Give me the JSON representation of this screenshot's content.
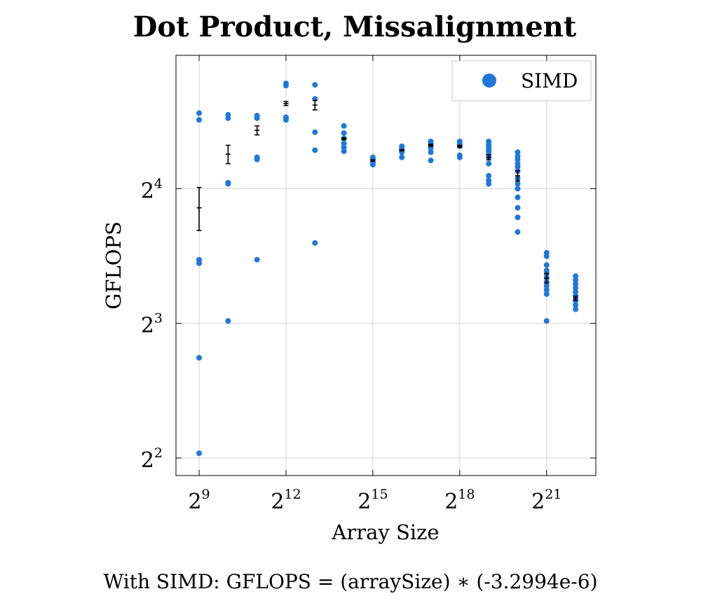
{
  "chart_data": {
    "type": "scatter",
    "title": "Dot Product, Missalignment",
    "xlabel": "Array Size",
    "ylabel": "GFLOPS",
    "x_scale": "log2",
    "y_scale": "log2",
    "x_range_exponent": [
      8.2,
      22.7
    ],
    "y_range_exponent": [
      1.87,
      4.99
    ],
    "x_ticks": [
      {
        "base": "2",
        "exp": "9",
        "value": 512
      },
      {
        "base": "2",
        "exp": "12",
        "value": 4096
      },
      {
        "base": "2",
        "exp": "15",
        "value": 32768
      },
      {
        "base": "2",
        "exp": "18",
        "value": 262144
      },
      {
        "base": "2",
        "exp": "21",
        "value": 2097152
      }
    ],
    "y_ticks": [
      {
        "base": "2",
        "exp": "2",
        "value": 4
      },
      {
        "base": "2",
        "exp": "3",
        "value": 8
      },
      {
        "base": "2",
        "exp": "4",
        "value": 16
      }
    ],
    "grid": true,
    "legend_position": "top-right",
    "series": [
      {
        "name": "SIMD",
        "color": "#1f77d8",
        "points": [
          {
            "x": 512,
            "ys": [
              23.6,
              22.8,
              11.1,
              10.9,
              6.7,
              4.1
            ]
          },
          {
            "x": 1024,
            "ys": [
              23.4,
              23.0,
              16.5,
              16.4,
              8.1
            ]
          },
          {
            "x": 2048,
            "ys": [
              23.3,
              23.0,
              18.8,
              18.6,
              11.1
            ]
          },
          {
            "x": 4096,
            "ys": [
              27.5,
              27.2,
              23.1,
              22.8
            ]
          },
          {
            "x": 8192,
            "ys": [
              27.3,
              25.4,
              21.4,
              19.5,
              12.1
            ]
          },
          {
            "x": 16384,
            "ys": [
              22.1,
              21.3,
              20.7,
              20.2,
              19.8,
              19.4
            ]
          },
          {
            "x": 32768,
            "ys": [
              18.8,
              18.6,
              18.3,
              18.1
            ]
          },
          {
            "x": 65536,
            "ys": [
              19.9,
              19.7,
              19.5,
              19.3,
              18.8
            ]
          },
          {
            "x": 131072,
            "ys": [
              20.4,
              20.2,
              20.0,
              19.7,
              19.3,
              18.5
            ]
          },
          {
            "x": 262144,
            "ys": [
              20.4,
              20.2,
              20.1,
              19.9,
              19.0,
              18.8
            ]
          },
          {
            "x": 524288,
            "ys": [
              20.4,
              20.1,
              19.9,
              19.6,
              19.4,
              19.1,
              18.8,
              18.2,
              17.1,
              16.7,
              16.4
            ]
          },
          {
            "x": 1048576,
            "ys": [
              19.3,
              18.9,
              18.6,
              18.2,
              17.9,
              17.5,
              16.9,
              16.4,
              16.0,
              15.3,
              14.5,
              13.8,
              12.8
            ]
          },
          {
            "x": 2097152,
            "ys": [
              11.5,
              11.3,
              10.8,
              10.5,
              10.3,
              10.1,
              9.9,
              9.7,
              9.5,
              9.3,
              8.1
            ]
          },
          {
            "x": 4194304,
            "ys": [
              10.2,
              10.0,
              9.8,
              9.6,
              9.4,
              9.2,
              9.0,
              8.8,
              8.6
            ]
          }
        ],
        "means": [
          {
            "x": 512,
            "y": 14.5,
            "err": 1.6
          },
          {
            "x": 1024,
            "y": 19.1,
            "err": 0.9
          },
          {
            "x": 2048,
            "y": 21.6,
            "err": 0.5
          },
          {
            "x": 4096,
            "y": 24.8,
            "err": 0.25
          },
          {
            "x": 8192,
            "y": 24.6,
            "err": 0.6
          },
          {
            "x": 16384,
            "y": 20.7,
            "err": 0.1
          },
          {
            "x": 32768,
            "y": 18.5,
            "err": 0.06
          },
          {
            "x": 65536,
            "y": 19.5,
            "err": 0.06
          },
          {
            "x": 131072,
            "y": 20.0,
            "err": 0.1
          },
          {
            "x": 262144,
            "y": 19.9,
            "err": 0.1
          },
          {
            "x": 524288,
            "y": 18.8,
            "err": 0.25
          },
          {
            "x": 1048576,
            "y": 17.1,
            "err": 0.45
          },
          {
            "x": 2097152,
            "y": 10.1,
            "err": 0.25
          },
          {
            "x": 4194304,
            "y": 9.1,
            "err": 0.1
          }
        ]
      }
    ],
    "formula": "With SIMD:  GFLOPS = (arraySize) ∗ (-3.2994e-6)"
  }
}
